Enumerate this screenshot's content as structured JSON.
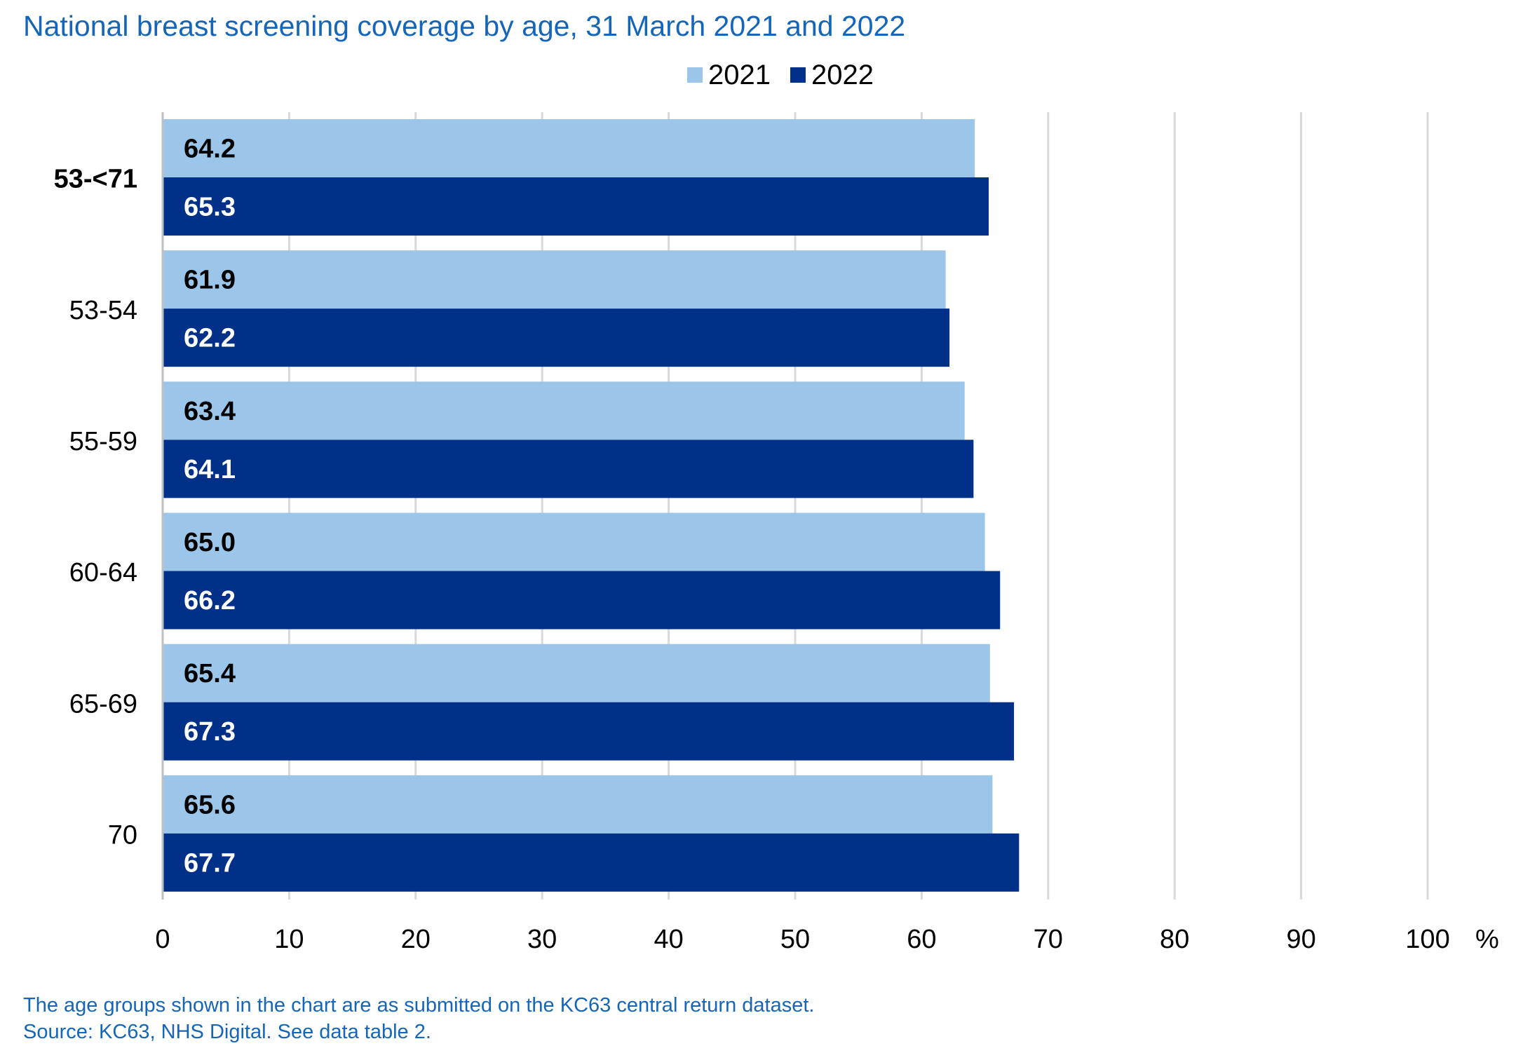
{
  "title": "National breast screening coverage by age, 31 March 2021 and 2022",
  "footnotes": {
    "line1": "The age groups shown in the chart are as submitted on the KC63 central return dataset.",
    "line2": "Source: KC63, NHS Digital. See data table 2."
  },
  "colors": {
    "series_2021": "#9bc6ea",
    "series_2022": "#003087",
    "title": "#1565b8",
    "grid": "#d9d9d9"
  },
  "chart_data": {
    "type": "bar",
    "orientation": "horizontal",
    "title": "National breast screening coverage by age, 31 March 2021 and 2022",
    "categories": [
      "53-<71",
      "53-54",
      "55-59",
      "60-64",
      "65-69",
      "70"
    ],
    "bold_categories": [
      "53-<71"
    ],
    "series": [
      {
        "name": "2021",
        "values": [
          64.2,
          61.9,
          63.4,
          65.0,
          65.4,
          65.6
        ]
      },
      {
        "name": "2022",
        "values": [
          65.3,
          62.2,
          64.1,
          66.2,
          67.3,
          67.7
        ]
      }
    ],
    "xlim": [
      0,
      100
    ],
    "xticks": [
      0,
      10,
      20,
      30,
      40,
      50,
      60,
      70,
      80,
      90,
      100
    ],
    "xunit": "%",
    "grid": "vertical",
    "legend": "top-center",
    "data_labels": true
  }
}
